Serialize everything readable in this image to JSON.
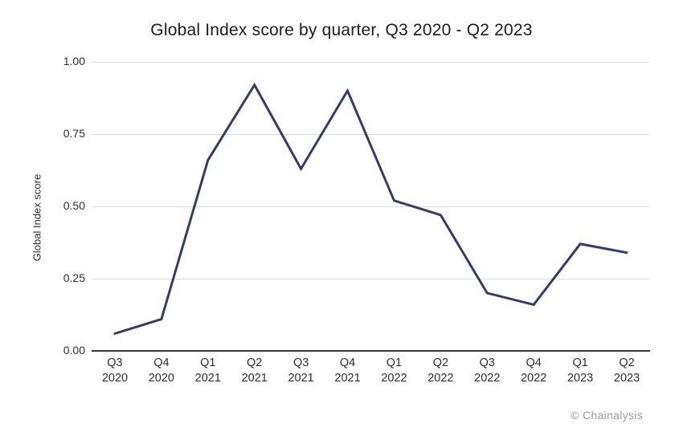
{
  "chart_data": {
    "type": "line",
    "title": "Global Index score by quarter, Q3 2020 - Q2 2023",
    "ylabel": "Global Index score",
    "xlabel": "",
    "categories": [
      "Q3 2020",
      "Q4 2020",
      "Q1 2021",
      "Q2 2021",
      "Q3 2021",
      "Q4 2021",
      "Q1 2022",
      "Q2 2022",
      "Q3 2022",
      "Q4 2022",
      "Q1 2023",
      "Q2 2023"
    ],
    "values": [
      0.06,
      0.11,
      0.66,
      0.92,
      0.63,
      0.9,
      0.52,
      0.47,
      0.2,
      0.16,
      0.37,
      0.34
    ],
    "ylim": [
      0,
      1
    ],
    "yticks": [
      0,
      0.25,
      0.5,
      0.75,
      1
    ],
    "ytick_labels": [
      "0.00",
      "0.25",
      "0.50",
      "0.75",
      "1.00"
    ],
    "grid": true,
    "legend": false,
    "line_color": "#2f3e6e"
  },
  "credit": {
    "text": "© Chainalysis"
  },
  "colors": {
    "background": "#ffffff",
    "grid": "#dcdcdc",
    "axis": "#3a3a3a",
    "text": "#2e2e2e",
    "credit": "#9b9b9b",
    "line": "#2f3e6e"
  }
}
